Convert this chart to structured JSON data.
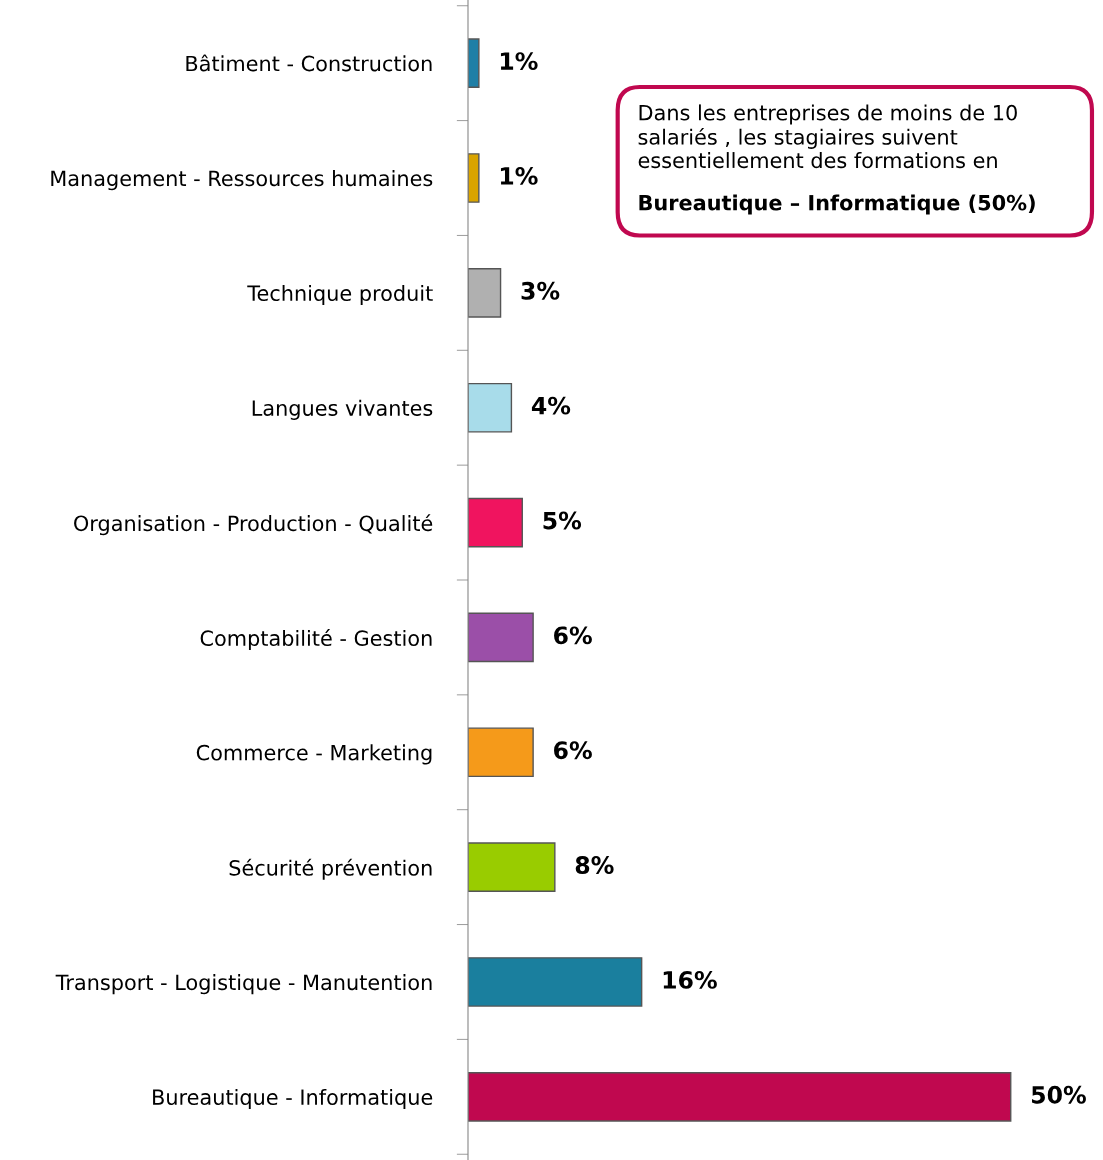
{
  "chart_data": {
    "type": "bar",
    "orientation": "horizontal",
    "categories": [
      "Bâtiment - Construction",
      "Management - Ressources humaines",
      "Technique produit",
      "Langues vivantes",
      "Organisation - Production - Qualité",
      "Comptabilité - Gestion",
      "Commerce - Marketing",
      "Sécurité prévention",
      "Transport - Logistique - Manutention",
      "Bureautique - Informatique"
    ],
    "values": [
      1,
      1,
      3,
      4,
      5,
      6,
      6,
      8,
      16,
      50
    ],
    "colors": [
      "#1f7fa6",
      "#d9a400",
      "#b0b0b0",
      "#a8dcea",
      "#f0145f",
      "#9b4fa8",
      "#f59a1a",
      "#99cc00",
      "#1a7f9e",
      "#c0084f"
    ],
    "value_labels": [
      "1%",
      "1%",
      "3%",
      "4%",
      "5%",
      "6%",
      "6%",
      "8%",
      "16%",
      "50%"
    ],
    "annotations": [
      "Dans les entreprises de moins de 10 salariés , les stagiaires suivent essentiellement des formations en",
      "Bureautique – Informatique (50%)"
    ],
    "grid": false,
    "legend": false
  }
}
